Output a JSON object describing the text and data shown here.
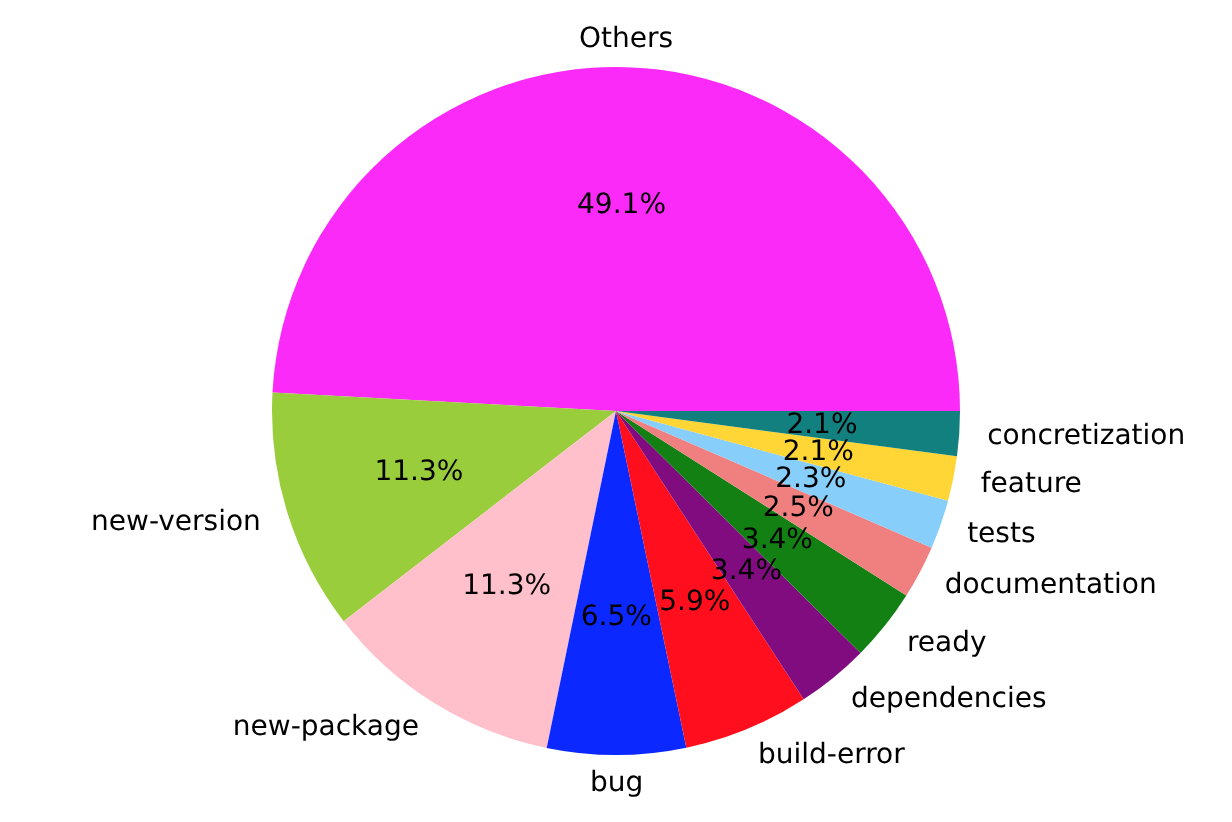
{
  "chart_data": {
    "type": "pie",
    "categories": [
      "Others",
      "new-version",
      "new-package",
      "bug",
      "build-error",
      "dependencies",
      "ready",
      "documentation",
      "tests",
      "feature",
      "concretization"
    ],
    "values": [
      49.1,
      11.3,
      11.3,
      6.5,
      5.9,
      3.4,
      3.4,
      2.5,
      2.3,
      2.1,
      2.1
    ],
    "value_labels": [
      "49.1%",
      "11.3%",
      "11.3%",
      "6.5%",
      "5.9%",
      "3.4%",
      "3.4%",
      "2.5%",
      "2.3%",
      "2.1%",
      "2.1%"
    ],
    "colors": [
      "#fc2af8",
      "#9acd3c",
      "#ffc0cb",
      "#0a28ff",
      "#ff0f1e",
      "#800c80",
      "#138013",
      "#f08080",
      "#87cefa",
      "#ffd635",
      "#138080"
    ]
  }
}
